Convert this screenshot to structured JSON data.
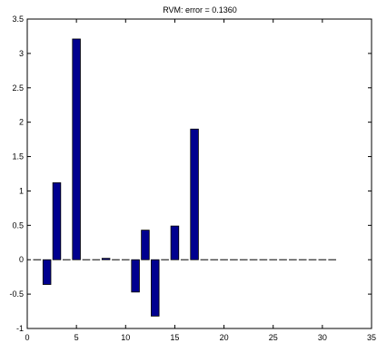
{
  "chart_data": {
    "type": "bar",
    "title": "RVM: error = 0.1360",
    "xlabel": "",
    "ylabel": "",
    "xlim": [
      0,
      35
    ],
    "ylim": [
      -1,
      3.5
    ],
    "xticks": [
      "0",
      "5",
      "10",
      "15",
      "20",
      "25",
      "30",
      "35"
    ],
    "yticks": [
      "-1",
      "-0.5",
      "0",
      "0.5",
      "1",
      "1.5",
      "2",
      "2.5",
      "3",
      "3.5"
    ],
    "grid": false,
    "x": [
      1,
      2,
      3,
      4,
      5,
      6,
      7,
      8,
      9,
      10,
      11,
      12,
      13,
      14,
      15,
      16,
      17,
      18,
      19,
      20,
      21,
      22,
      23,
      24,
      25,
      26,
      27,
      28,
      29,
      30,
      31
    ],
    "values": [
      0,
      -0.36,
      1.12,
      0,
      3.21,
      0,
      0,
      0.02,
      0,
      0,
      -0.47,
      0.43,
      -0.82,
      0,
      0.49,
      0,
      1.9,
      0,
      0,
      0,
      0,
      0,
      0,
      0,
      0,
      0,
      0,
      0,
      0,
      0,
      0
    ],
    "bar_color": "#00008f",
    "baseline_color": "#000000"
  }
}
